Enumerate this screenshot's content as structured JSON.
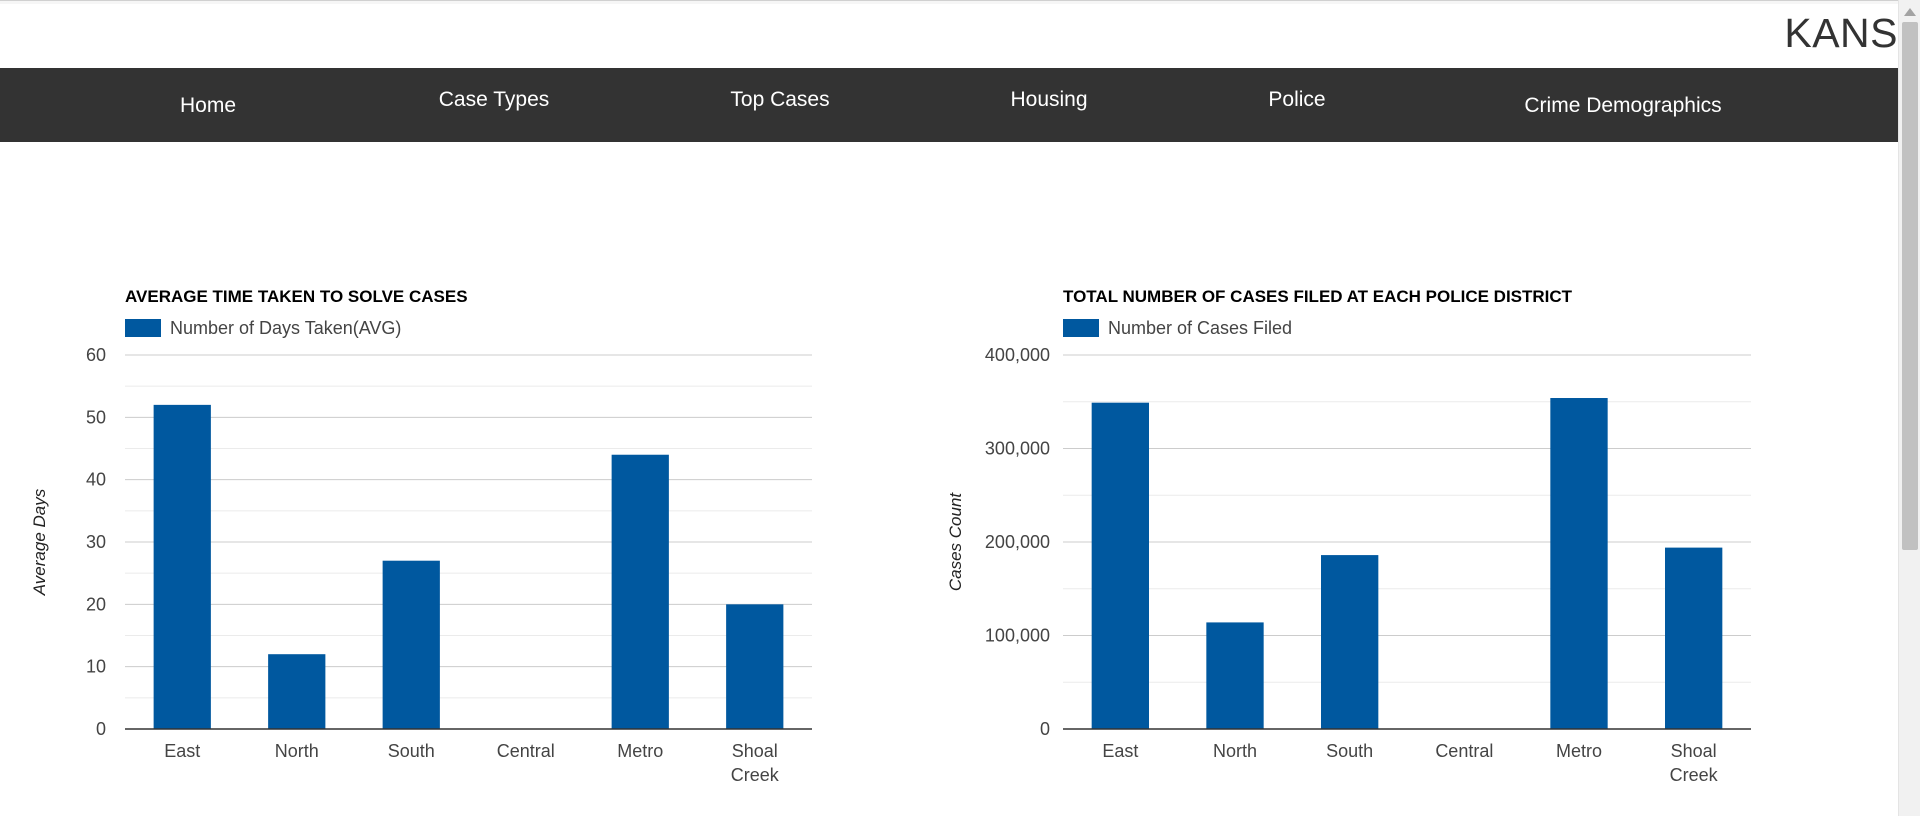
{
  "header": {
    "brand": "KANS"
  },
  "nav": {
    "items": [
      {
        "label": "Home"
      },
      {
        "label": "Case Types"
      },
      {
        "label": "Top Cases"
      },
      {
        "label": "Housing"
      },
      {
        "label": "Police"
      },
      {
        "label": "Crime Demographics"
      }
    ]
  },
  "colors": {
    "bar": "#00589f",
    "navbar": "#333333",
    "gridline": "#cccccc",
    "minor_gridline": "#ebebeb"
  },
  "chart_data": [
    {
      "type": "bar",
      "title": "AVERAGE TIME TAKEN TO SOLVE CASES",
      "legend": "Number of Days Taken(AVG)",
      "legend_position": "top-left",
      "xlabel": "",
      "ylabel": "Average Days",
      "categories": [
        "East",
        "North",
        "South",
        "Central",
        "Metro",
        "Shoal Creek"
      ],
      "values": [
        52,
        12,
        27,
        0,
        44,
        20
      ],
      "ylim": [
        0,
        60
      ],
      "ticks": [
        "0",
        "10",
        "20",
        "30",
        "40",
        "50",
        "60"
      ],
      "grid": true
    },
    {
      "type": "bar",
      "title": "TOTAL NUMBER OF CASES FILED AT EACH POLICE DISTRICT",
      "legend": "Number of Cases Filed",
      "legend_position": "top-left",
      "xlabel": "",
      "ylabel": "Cases Count",
      "categories": [
        "East",
        "North",
        "South",
        "Central",
        "Metro",
        "Shoal Creek"
      ],
      "values": [
        349000,
        114000,
        186000,
        0,
        354000,
        194000
      ],
      "ylim": [
        0,
        400000
      ],
      "ticks": [
        "0",
        "100,000",
        "200,000",
        "300,000",
        "400,000"
      ],
      "grid": true
    }
  ]
}
